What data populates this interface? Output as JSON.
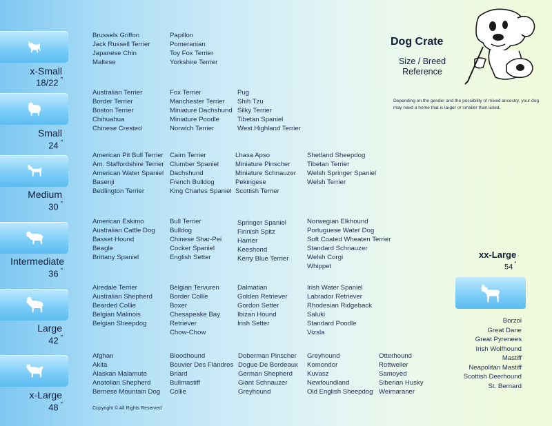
{
  "title": "Dog Crate",
  "subtitle": "Size / Breed Reference",
  "note": "Depending on the gender and the possibility of mixed ancestry, your dog may need  a home that is larger or smaller than listed.",
  "copyright": "Copyright © All Rights Reserved",
  "icons": {
    "dog_silhouette": "dog-silhouette-icon",
    "mascot": "cartoon-dog-icon"
  },
  "colors": {
    "tab": "#7fcff8",
    "text": "#1f2d50"
  },
  "sizes": [
    {
      "name": "x-Small",
      "inch": "18/22",
      "quote": "”",
      "cols": [
        [
          "Brussels Griffon",
          "Jack Russell Terrier",
          "Japanese Chin",
          "Maltese"
        ],
        [
          "Papillon",
          "Pomeranian",
          "Toy Fox Terrier",
          "Yorkshire Terrier"
        ]
      ]
    },
    {
      "name": "Small",
      "inch": "24",
      "quote": "”",
      "cols": [
        [
          "Australian Terrier",
          "Border Terrier",
          "Boston Terrier",
          "Chihuahua",
          "Chinese Crested"
        ],
        [
          "Fox Terrier",
          "Manchester Terrier",
          "Miniature Dachshund",
          "Miniature Poodle",
          "Norwich Terrier"
        ],
        [
          "Pug",
          "Shih Tzu",
          "Silky Terrier",
          "Tibetan Spaniel",
          "West Highland Terrier"
        ]
      ]
    },
    {
      "name": "Medium",
      "inch": "30",
      "quote": "”",
      "cols": [
        [
          "American Pit Bull Terrier",
          "Am. Staffordshire Terrier",
          "American Water Spaniel",
          "Basenji",
          "Bedlington Terrier"
        ],
        [
          "Cairn Terrier",
          "Clumber Spaniel",
          "Dachshund",
          "French Bulldog",
          "King Charles Spaniel"
        ],
        [
          "Lhasa Apso",
          "Miniature Pinscher",
          "Miniature Schnauzer",
          "Pekingese",
          "Scottish Terrier"
        ],
        [
          "Shetland Sheepdog",
          "Tibetan Terrier",
          "Welsh Springer Spaniel",
          "Welsh Terrier"
        ]
      ]
    },
    {
      "name": "Intermediate",
      "inch": "36",
      "quote": "”",
      "cols": [
        [
          "American Eskimo",
          "Australian Cattle Dog",
          "Basset Hound",
          "Beagle",
          "Brittany Spaniel"
        ],
        [
          "Bull Terrier",
          "Bulldog",
          "Chinese Shar-Pei",
          "Cocker Spaniel",
          "English Setter"
        ],
        [
          "Springer Spaniel",
          "Finnish Spitz",
          "Harrier",
          "Keeshond",
          "Kerry Blue Terrier"
        ],
        [
          "Norwegian Elkhound",
          "Portuguese Water Dog",
          "Soft Coated Wheaten Terrier",
          "Standard Schnauzer",
          "Welsh Corgi",
          "Whippet"
        ]
      ]
    },
    {
      "name": "Large",
      "inch": "42",
      "quote": "”",
      "cols": [
        [
          "Airedale Terrier",
          "Australian Shepherd",
          "Bearded Collie",
          "Belgian Malinois",
          "Belgian Sheepdog"
        ],
        [
          "Belgian Tervuren",
          "Border Collie",
          "Boxer",
          "Chesapeake Bay",
          "Retriever",
          "Chow-Chow"
        ],
        [
          "Dalmatian",
          "Golden Retriever",
          "Gordon Setter",
          "Ibizan Hound",
          "Irish Setter"
        ],
        [
          "Irish Water Spaniel",
          "Labrador Retriever",
          "Rhodesian Ridgeback",
          "Saluki",
          "Standard Poodle",
          "Vizsla"
        ]
      ]
    },
    {
      "name": "x-Large",
      "inch": "48",
      "quote": "”",
      "cols": [
        [
          "Afghan",
          "Akita",
          "Alaskan Malamute",
          "Anatolian Shepherd",
          "Bernese Mountain Dog"
        ],
        [
          "Bloodhound",
          "Bouvier Des Flandres",
          "Briard",
          "Bullmastiff",
          "Collie"
        ],
        [
          "Doberman Pinscher",
          "Dogue De Bordeaux",
          "German Shepherd",
          "Giant Schnauzer",
          "Greyhound"
        ],
        [
          "Greyhound",
          "Komondor",
          "Kuvasz",
          "Newfoundland",
          "Old English Sheepdog"
        ],
        [
          "Otterhound",
          "Rottweiler",
          "Samoyed",
          "Siberian Husky",
          "Weimaraner"
        ]
      ]
    }
  ],
  "xxl": {
    "name": "xx-Large",
    "inch": "54",
    "quote": "”",
    "breeds": [
      "Borzoi",
      "Great Dane",
      "Great Pyrenees",
      "Irish Wolfhound",
      "Mastiff",
      "Neapolitan Mastiff",
      "Scottish Deerhound",
      "St. Bernard"
    ]
  }
}
